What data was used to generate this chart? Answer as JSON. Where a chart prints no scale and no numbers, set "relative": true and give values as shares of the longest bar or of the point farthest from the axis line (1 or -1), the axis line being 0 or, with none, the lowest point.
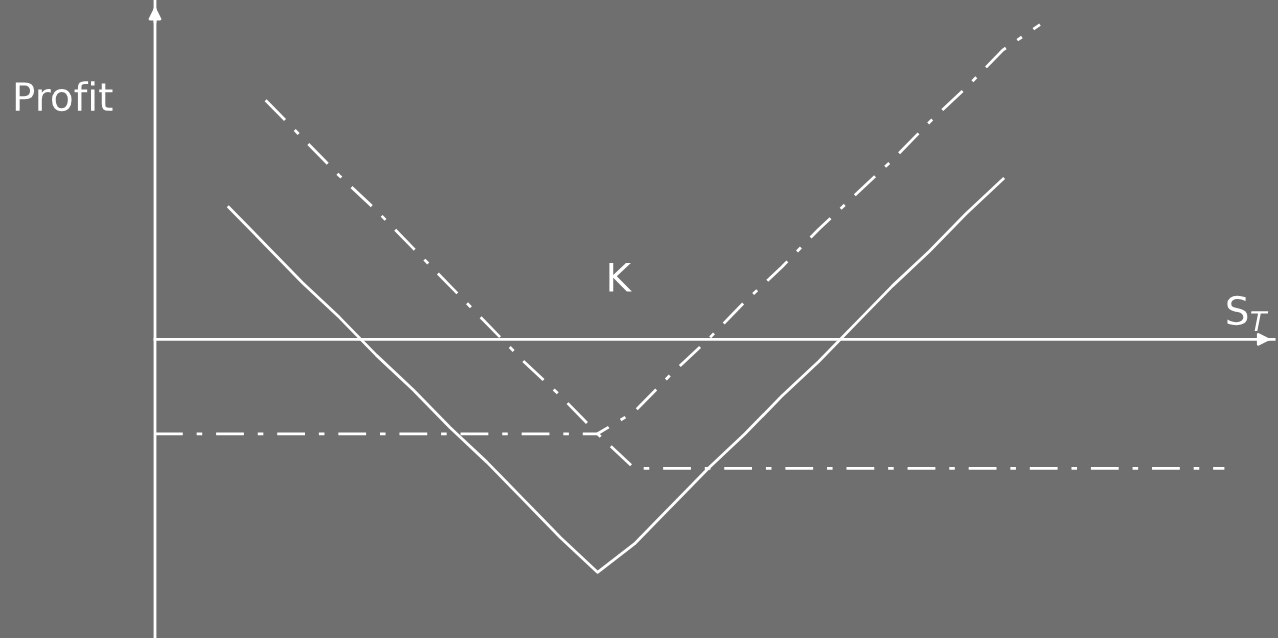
{
  "chart_data": {
    "type": "line",
    "relative": true,
    "xlabel": "S$_{T}$",
    "ylabel": "Profit",
    "annotations": [
      "K"
    ],
    "categories": [
      null,
      null,
      null,
      null,
      null,
      null,
      null,
      null,
      null,
      null,
      null,
      null,
      null,
      null,
      null,
      null,
      null,
      null,
      null,
      null,
      null,
      null,
      null,
      null,
      null,
      null,
      null,
      null,
      null,
      null
    ],
    "series": [
      {
        "color": "#ffffff",
        "line_style": "solid",
        "values": [
          null,
          null,
          0.42,
          0.3,
          0.18,
          0.07,
          -0.05,
          -0.16,
          -0.28,
          -0.39,
          -0.51,
          -0.63,
          -0.74,
          -0.65,
          -0.53,
          -0.41,
          -0.3,
          -0.18,
          -0.07,
          0.05,
          0.17,
          0.28,
          0.4,
          0.51,
          null,
          null,
          null,
          null,
          null,
          null
        ]
      },
      {
        "color": "#ffffff",
        "line_style": "dashdot",
        "values": [
          -0.3,
          -0.3,
          -0.3,
          -0.3,
          -0.3,
          -0.3,
          -0.3,
          -0.3,
          -0.3,
          -0.3,
          -0.3,
          -0.3,
          -0.3,
          -0.23,
          -0.11,
          0.0,
          0.12,
          0.23,
          0.35,
          0.46,
          0.57,
          0.69,
          0.8,
          0.92,
          1.0,
          null,
          null,
          null,
          null,
          null
        ]
      },
      {
        "color": "#ffffff",
        "line_style": "dashdot",
        "values": [
          null,
          null,
          null,
          0.76,
          0.64,
          0.52,
          0.41,
          0.29,
          0.17,
          0.05,
          -0.07,
          -0.18,
          -0.3,
          -0.41,
          -0.41,
          -0.41,
          -0.41,
          -0.41,
          -0.41,
          -0.41,
          -0.41,
          -0.41,
          -0.41,
          -0.41,
          -0.41,
          -0.41,
          -0.41,
          -0.41,
          -0.41,
          -0.41
        ]
      }
    ]
  }
}
